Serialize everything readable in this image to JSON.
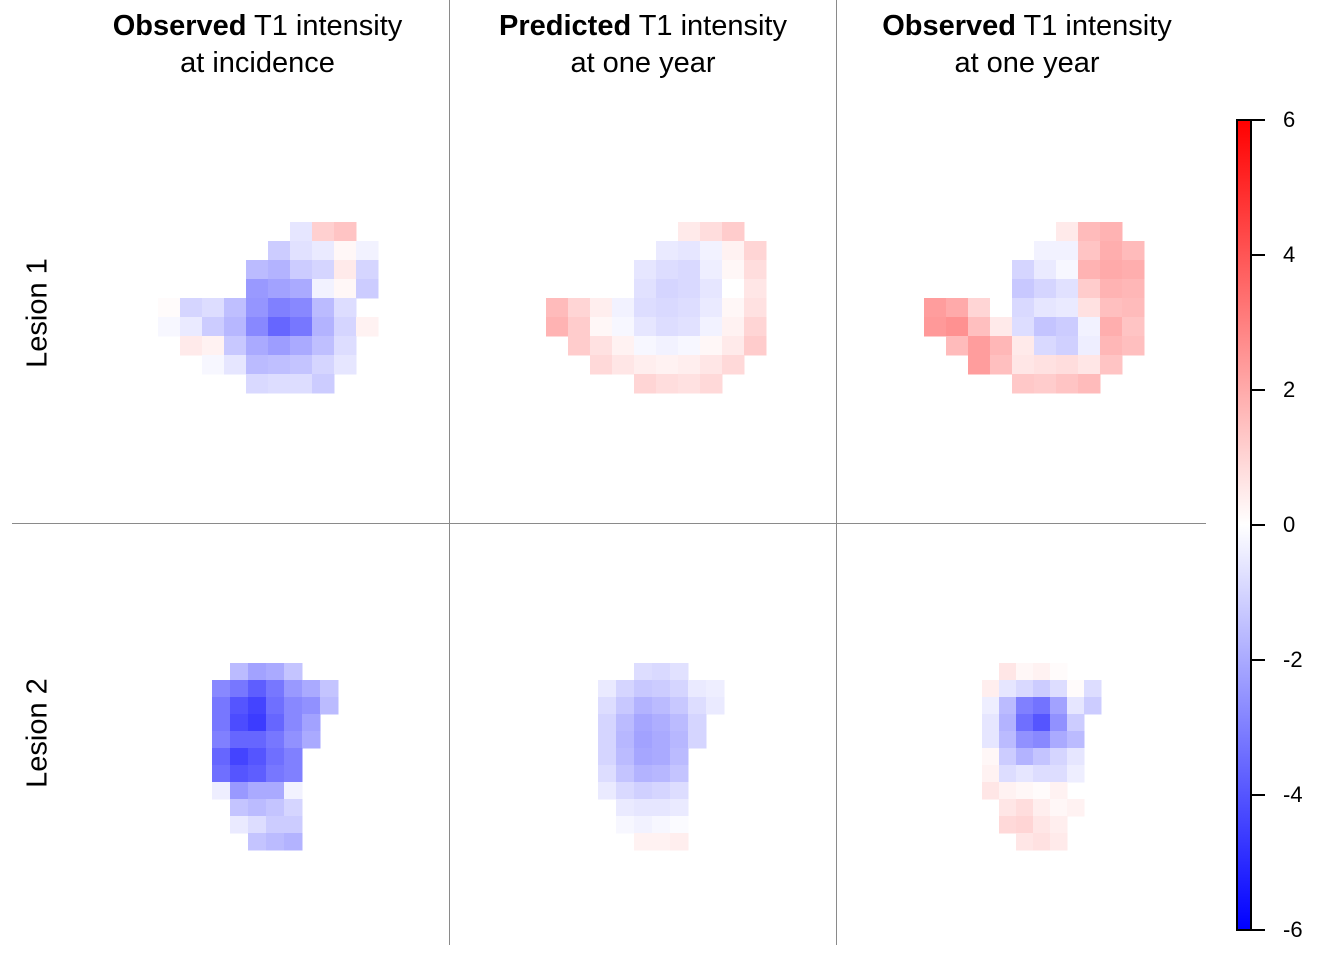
{
  "columns": [
    {
      "bold": "Observed",
      "rest": " T1 intensity",
      "line2": "at incidence"
    },
    {
      "bold": "Predicted",
      "rest": " T1 intensity",
      "line2": "at one year"
    },
    {
      "bold": "Observed",
      "rest": " T1 intensity",
      "line2": "at one year"
    }
  ],
  "rows": [
    "Lesion 1",
    "Lesion 2"
  ],
  "chart_data": {
    "type": "heatmap",
    "title": "",
    "xlabel": "",
    "ylabel": "",
    "colorbar": {
      "range": [
        -6,
        6
      ],
      "ticks": [
        "6",
        "4",
        "2",
        "0",
        "-2",
        "-4",
        "-6"
      ],
      "tick_values": [
        6,
        4,
        2,
        0,
        -2,
        -4,
        -6
      ],
      "low_color": "#0000ff",
      "mid_color": "#ffffff",
      "high_color": "#ff0000"
    },
    "panels": [
      {
        "row": "Lesion 1",
        "column": "Observed T1 intensity at incidence",
        "grid": [
          [
            null,
            null,
            null,
            null,
            null,
            null,
            -0.6,
            1.1,
            1.4,
            null
          ],
          [
            null,
            null,
            null,
            null,
            null,
            -1.2,
            -0.7,
            -0.5,
            0.2,
            -0.3
          ],
          [
            null,
            null,
            null,
            null,
            -1.6,
            -1.8,
            -1.2,
            -1.0,
            0.5,
            -1.0
          ],
          [
            null,
            null,
            null,
            null,
            -2.4,
            -2.2,
            -2.0,
            -0.3,
            0.2,
            -1.2
          ],
          [
            0.1,
            -1.0,
            -0.8,
            -1.5,
            -2.5,
            -3.0,
            -2.8,
            -1.6,
            -0.8,
            null
          ],
          [
            -0.2,
            -0.5,
            -1.2,
            -1.7,
            -2.8,
            -3.6,
            -3.2,
            -1.8,
            -1.0,
            0.3
          ],
          [
            null,
            0.5,
            0.3,
            -1.3,
            -2.0,
            -2.3,
            -2.0,
            -1.5,
            -0.8,
            null
          ],
          [
            null,
            null,
            -0.2,
            -0.6,
            -1.6,
            -1.5,
            -1.4,
            -1.0,
            -0.6,
            null
          ],
          [
            null,
            null,
            null,
            null,
            -0.9,
            -0.8,
            -0.8,
            -1.2,
            null,
            null
          ]
        ]
      },
      {
        "row": "Lesion 1",
        "column": "Predicted T1 intensity at one year",
        "grid": [
          [
            null,
            null,
            null,
            null,
            null,
            null,
            0.5,
            0.8,
            1.2,
            null
          ],
          [
            null,
            null,
            null,
            null,
            null,
            -0.5,
            -0.6,
            -0.3,
            0.3,
            1.0
          ],
          [
            null,
            null,
            null,
            null,
            -0.6,
            -0.8,
            -0.9,
            -0.4,
            0.2,
            0.8
          ],
          [
            null,
            null,
            null,
            null,
            -0.7,
            -1.0,
            -0.9,
            -0.6,
            0.0,
            0.6
          ],
          [
            1.6,
            1.0,
            0.4,
            -0.3,
            -0.8,
            -0.9,
            -0.8,
            -0.5,
            0.2,
            0.7
          ],
          [
            1.8,
            1.2,
            0.2,
            -0.2,
            -0.6,
            -0.8,
            -0.7,
            -0.3,
            0.3,
            1.0
          ],
          [
            null,
            1.2,
            0.7,
            0.3,
            -0.2,
            -0.3,
            -0.2,
            0.2,
            0.5,
            1.2
          ],
          [
            null,
            null,
            0.9,
            0.6,
            0.4,
            0.3,
            0.4,
            0.6,
            0.9,
            null
          ],
          [
            null,
            null,
            null,
            null,
            1.0,
            0.8,
            0.7,
            0.9,
            null,
            null
          ]
        ]
      },
      {
        "row": "Lesion 1",
        "column": "Observed T1 intensity at one year",
        "grid": [
          [
            null,
            null,
            null,
            null,
            null,
            null,
            0.5,
            1.6,
            1.8,
            null
          ],
          [
            null,
            null,
            null,
            null,
            null,
            -0.3,
            -0.3,
            1.4,
            1.9,
            1.6
          ],
          [
            null,
            null,
            null,
            null,
            -1.0,
            -0.5,
            -0.2,
            1.8,
            2.0,
            1.9
          ],
          [
            null,
            null,
            null,
            null,
            -1.3,
            -1.0,
            -0.7,
            1.2,
            1.8,
            1.7
          ],
          [
            2.3,
            2.0,
            1.0,
            0.0,
            -0.9,
            -0.6,
            -0.5,
            0.7,
            1.5,
            1.6
          ],
          [
            2.4,
            2.6,
            1.5,
            0.5,
            -0.8,
            -1.4,
            -1.2,
            -0.3,
            1.9,
            1.4
          ],
          [
            null,
            1.6,
            2.3,
            1.7,
            0.5,
            -0.9,
            -1.1,
            -0.4,
            1.7,
            1.5
          ],
          [
            null,
            null,
            2.3,
            1.5,
            0.6,
            0.7,
            0.8,
            0.6,
            1.4,
            null
          ],
          [
            null,
            null,
            null,
            null,
            1.3,
            1.2,
            1.4,
            1.6,
            null,
            null
          ]
        ]
      },
      {
        "row": "Lesion 2",
        "column": "Observed T1 intensity at incidence",
        "grid": [
          [
            null,
            -1.6,
            -2.2,
            -2.0,
            -1.4,
            null,
            null
          ],
          [
            -2.8,
            -3.2,
            -3.8,
            -3.2,
            -2.4,
            -2.0,
            -1.4
          ],
          [
            -3.2,
            -4.0,
            -4.4,
            -3.4,
            -2.8,
            -2.6,
            -1.6
          ],
          [
            -3.2,
            -4.2,
            -4.6,
            -3.6,
            -2.8,
            -2.2,
            null
          ],
          [
            -3.0,
            -3.6,
            -3.6,
            -3.2,
            -2.6,
            -2.0,
            null
          ],
          [
            -3.6,
            -4.4,
            -4.0,
            -3.4,
            -3.0,
            null,
            null
          ],
          [
            -3.4,
            -4.0,
            -3.8,
            -3.2,
            -3.0,
            null,
            null
          ],
          [
            -0.4,
            -2.4,
            -2.0,
            -2.0,
            -0.3,
            null,
            null
          ],
          [
            null,
            -1.4,
            -1.6,
            -1.4,
            -1.0,
            null,
            null
          ],
          [
            null,
            -0.5,
            -0.8,
            -1.2,
            -1.2,
            null,
            null
          ],
          [
            null,
            null,
            -1.4,
            -1.6,
            -1.8,
            null,
            null
          ]
        ]
      },
      {
        "row": "Lesion 2",
        "column": "Predicted T1 intensity at one year",
        "grid": [
          [
            null,
            null,
            -0.8,
            -0.9,
            -0.7,
            null,
            null
          ],
          [
            -0.5,
            -1.0,
            -1.3,
            -1.2,
            -1.0,
            -0.5,
            -0.4
          ],
          [
            -0.8,
            -1.3,
            -1.8,
            -1.6,
            -1.3,
            -0.8,
            -0.5
          ],
          [
            -1.0,
            -1.6,
            -2.1,
            -1.9,
            -1.6,
            -1.0,
            null
          ],
          [
            -1.0,
            -1.7,
            -2.2,
            -2.0,
            -1.7,
            -1.0,
            null
          ],
          [
            -1.0,
            -1.6,
            -2.1,
            -2.0,
            -1.6,
            null,
            null
          ],
          [
            -0.8,
            -1.4,
            -1.8,
            -1.7,
            -1.4,
            null,
            null
          ],
          [
            -0.5,
            -0.9,
            -1.1,
            -1.0,
            -0.8,
            null,
            null
          ],
          [
            null,
            -0.5,
            -0.6,
            -0.6,
            -0.5,
            null,
            null
          ],
          [
            null,
            -0.2,
            -0.3,
            -0.2,
            -0.1,
            null,
            null
          ],
          [
            null,
            null,
            0.3,
            0.3,
            0.4,
            null,
            null
          ]
        ]
      },
      {
        "row": "Lesion 2",
        "column": "Observed T1 intensity at one year",
        "grid": [
          [
            null,
            0.6,
            0.2,
            0.3,
            0.1,
            null,
            null,
            null
          ],
          [
            0.4,
            -0.6,
            -0.9,
            -1.2,
            -0.8,
            0.1,
            -0.8,
            null
          ],
          [
            -0.4,
            -1.6,
            -3.0,
            -3.3,
            -2.2,
            -0.6,
            -1.2,
            null
          ],
          [
            -0.6,
            -1.8,
            -3.4,
            -4.0,
            -2.6,
            -1.2,
            null,
            null
          ],
          [
            -0.6,
            -1.6,
            -2.6,
            -2.8,
            -2.0,
            -1.6,
            null,
            null
          ],
          [
            0.2,
            -1.2,
            -1.8,
            -1.4,
            -1.0,
            -0.6,
            null,
            null
          ],
          [
            0.3,
            -0.8,
            -0.6,
            -0.8,
            -0.8,
            -0.4,
            null,
            null
          ],
          [
            0.6,
            0.3,
            0.2,
            0.1,
            0.3,
            null,
            null,
            null
          ],
          [
            null,
            0.6,
            0.8,
            0.4,
            0.2,
            0.3,
            null,
            null
          ],
          [
            null,
            0.9,
            1.0,
            0.6,
            0.4,
            null,
            null,
            null
          ],
          [
            null,
            null,
            0.6,
            0.7,
            0.5,
            null,
            null,
            null
          ]
        ]
      }
    ]
  }
}
